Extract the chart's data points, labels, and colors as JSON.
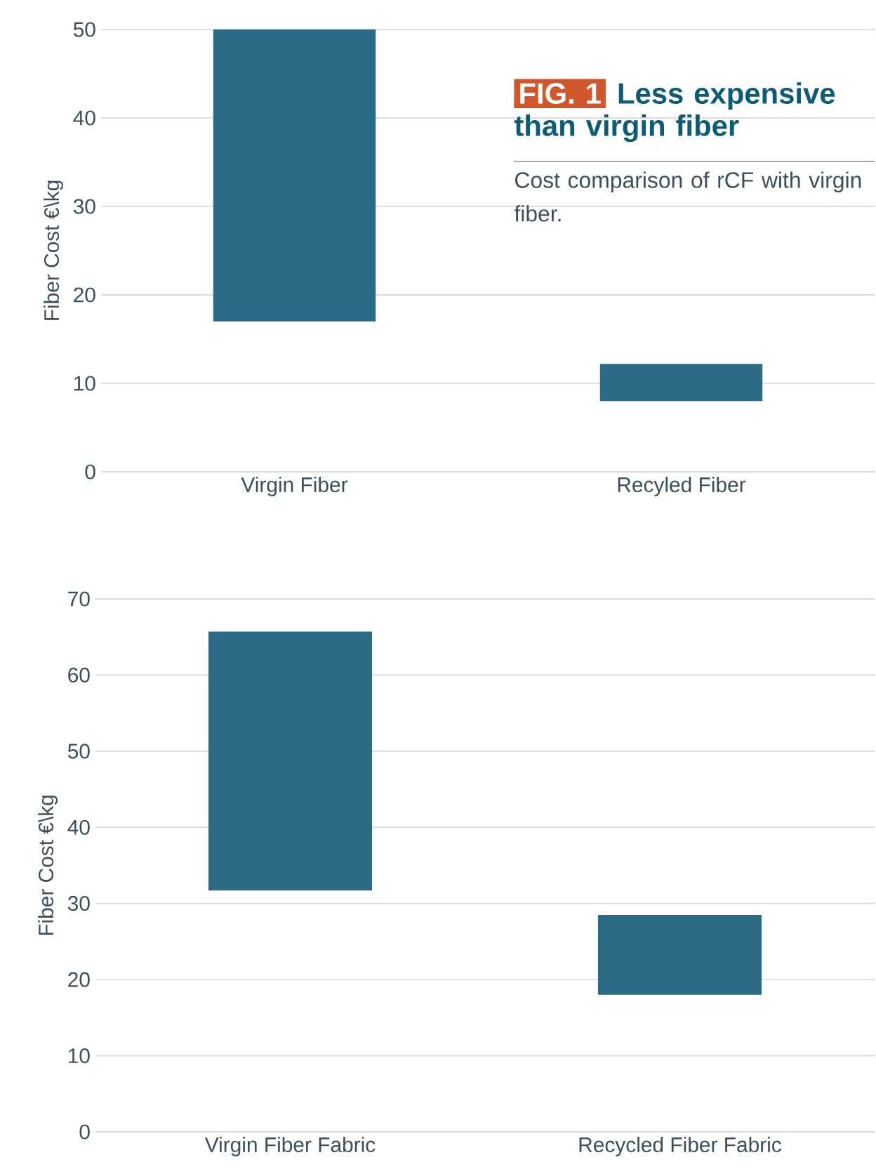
{
  "chart_data": [
    {
      "type": "bar",
      "title": "Less expensive than virgin fiber",
      "subtitle": "Cost comparison of rCF with virgin fiber.",
      "annotations": [
        "FIG. 1"
      ],
      "ylabel": "Fiber Cost €\\kg",
      "categories": [
        "Virgin Fiber",
        "Recyled Fiber"
      ],
      "base": [
        17,
        8
      ],
      "values": [
        33,
        4.2
      ],
      "color": "#2b6b85",
      "ylim": [
        0,
        50
      ],
      "yticks": [
        0,
        10,
        20,
        30,
        40,
        50
      ],
      "grid": "y"
    },
    {
      "type": "bar",
      "ylabel": "Fiber Cost €\\kg",
      "categories": [
        "Virgin Fiber Fabric",
        "Recycled Fiber Fabric"
      ],
      "base": [
        31.7,
        18
      ],
      "values": [
        34,
        10.5
      ],
      "color": "#2b6b85",
      "ylim": [
        0,
        70
      ],
      "yticks": [
        0,
        10,
        20,
        30,
        40,
        50,
        60,
        70
      ],
      "grid": "y"
    }
  ]
}
